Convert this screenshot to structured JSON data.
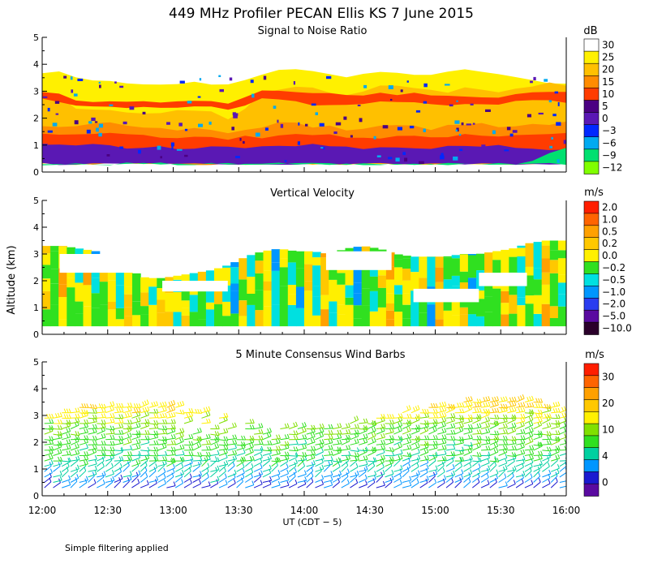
{
  "title": "449 MHz Profiler PECAN Ellis KS  7 June 2015",
  "ylabel": "Altitude (km)",
  "footnote": "Simple filtering applied",
  "colors": {
    "background": "#ffffff",
    "axis": "#000000",
    "text": "#000000"
  },
  "chart_data": [
    {
      "type": "heatmap",
      "title": "Signal to Noise Ratio",
      "xlabel": "",
      "ylabel": "Altitude (km)",
      "xlim": [
        0,
        240
      ],
      "ylim": [
        0,
        5
      ],
      "y_ticks": [
        "0",
        "1",
        "2",
        "3",
        "4",
        "5"
      ],
      "colorbar": {
        "unit": "dB",
        "labels": [
          "30",
          "25",
          "20",
          "15",
          "10",
          "5",
          "0",
          "−3",
          "−6",
          "−9",
          "−12"
        ],
        "colors": [
          "#ffffff",
          "#fff000",
          "#ffc000",
          "#ff8c00",
          "#ff3c00",
          "#4b0082",
          "#5a18b4",
          "#0028ff",
          "#00aaf0",
          "#00e070",
          "#80ff00"
        ]
      },
      "layers": [
        {
          "level": 0,
          "top": [
            3.9,
            4.0,
            3.8,
            3.6,
            3.55,
            3.5,
            3.45,
            3.5,
            3.6,
            3.6,
            3.5,
            3.4,
            3.55,
            3.8,
            4.0,
            4.0,
            3.9,
            3.8,
            3.7,
            3.8,
            3.9,
            3.95,
            3.9,
            3.8,
            3.9,
            3.95,
            3.9,
            3.8,
            3.7,
            3.6,
            3.5,
            3.45
          ],
          "bottom": [
            0.3,
            0.3,
            0.3,
            0.3,
            0.3,
            0.3,
            0.3,
            0.3,
            0.3,
            0.3,
            0.3,
            0.3,
            0.3,
            0.3,
            0.3,
            0.3,
            0.3,
            0.3,
            0.3,
            0.3,
            0.3,
            0.3,
            0.3,
            0.3,
            0.3,
            0.3,
            0.3,
            0.3,
            0.3,
            0.3,
            0.3,
            0.3
          ]
        },
        {
          "level": 1,
          "top": [
            3.7,
            3.7,
            3.5,
            3.4,
            3.4,
            3.35,
            3.3,
            3.3,
            3.3,
            3.35,
            3.3,
            3.2,
            3.4,
            3.6,
            3.8,
            3.85,
            3.75,
            3.6,
            3.5,
            3.6,
            3.7,
            3.7,
            3.65,
            3.6,
            3.7,
            3.8,
            3.7,
            3.6,
            3.5,
            3.4,
            3.35,
            3.3
          ],
          "bottom": [
            0.3,
            0.3,
            0.3,
            0.3,
            0.3,
            0.3,
            0.3,
            0.3,
            0.3,
            0.3,
            0.3,
            0.3,
            0.3,
            0.3,
            0.3,
            0.3,
            0.3,
            0.3,
            0.3,
            0.3,
            0.3,
            0.3,
            0.3,
            0.3,
            0.3,
            0.3,
            0.3,
            0.3,
            0.3,
            0.3,
            0.3,
            0.3
          ]
        },
        {
          "level": 2,
          "top": [
            2.9,
            2.8,
            2.4,
            2.3,
            2.3,
            2.2,
            2.2,
            2.2,
            2.3,
            2.3,
            2.2,
            2.0,
            2.4,
            2.9,
            3.1,
            3.2,
            3.1,
            3.0,
            2.9,
            3.0,
            3.2,
            3.2,
            3.1,
            3.0,
            3.0,
            3.1,
            3.1,
            3.0,
            3.1,
            3.2,
            3.3,
            3.2
          ],
          "bottom": [
            0.3,
            0.3,
            0.3,
            0.3,
            0.3,
            0.3,
            0.3,
            0.3,
            0.3,
            0.3,
            0.3,
            0.3,
            0.3,
            0.3,
            0.3,
            0.3,
            0.3,
            0.3,
            0.3,
            0.3,
            0.3,
            0.3,
            0.3,
            0.3,
            0.3,
            0.3,
            0.3,
            0.3,
            0.3,
            0.3,
            0.3,
            0.3
          ]
        },
        {
          "level": 3,
          "top": [
            1.7,
            1.7,
            1.7,
            1.8,
            1.8,
            1.7,
            1.7,
            1.6,
            1.6,
            1.6,
            1.6,
            1.5,
            1.6,
            1.7,
            1.8,
            1.8,
            1.7,
            1.7,
            1.6,
            1.6,
            1.7,
            1.7,
            1.7,
            1.6,
            1.7,
            1.8,
            1.8,
            1.7,
            1.7,
            1.8,
            1.8,
            1.9
          ],
          "bottom": [
            0.3,
            0.3,
            0.3,
            0.3,
            0.3,
            0.3,
            0.3,
            0.3,
            0.3,
            0.3,
            0.3,
            0.3,
            0.3,
            0.3,
            0.3,
            0.3,
            0.3,
            0.3,
            0.3,
            0.3,
            0.3,
            0.3,
            0.3,
            0.3,
            0.3,
            0.3,
            0.3,
            0.3,
            0.3,
            0.3,
            0.3,
            0.3
          ]
        },
        {
          "level": 4,
          "top": [
            1.4,
            1.4,
            1.4,
            1.4,
            1.4,
            1.4,
            1.35,
            1.3,
            1.3,
            1.3,
            1.3,
            1.25,
            1.3,
            1.3,
            1.4,
            1.4,
            1.4,
            1.35,
            1.3,
            1.3,
            1.3,
            1.35,
            1.35,
            1.3,
            1.35,
            1.4,
            1.4,
            1.35,
            1.35,
            1.4,
            1.4,
            1.4
          ],
          "bottom": [
            0.6,
            0.6,
            0.6,
            0.6,
            0.6,
            0.6,
            0.6,
            0.6,
            0.6,
            0.6,
            0.6,
            0.6,
            0.6,
            0.6,
            0.6,
            0.6,
            0.6,
            0.6,
            0.6,
            0.6,
            0.6,
            0.6,
            0.6,
            0.6,
            0.6,
            0.6,
            0.6,
            0.6,
            0.6,
            0.6,
            0.6,
            0.6
          ]
        },
        {
          "level": 4,
          "top": [
            3.0,
            2.9,
            2.7,
            2.6,
            2.6,
            2.6,
            2.6,
            2.6,
            2.6,
            2.6,
            2.6,
            2.5,
            2.8,
            3.0,
            3.0,
            3.0,
            2.9,
            2.9,
            2.8,
            2.8,
            2.9,
            2.9,
            2.9,
            2.8,
            2.8,
            2.8,
            2.8,
            2.8,
            2.9,
            3.0,
            3.0,
            3.0
          ],
          "bottom": [
            2.7,
            2.6,
            2.5,
            2.4,
            2.4,
            2.4,
            2.4,
            2.4,
            2.4,
            2.4,
            2.4,
            2.3,
            2.5,
            2.7,
            2.7,
            2.6,
            2.5,
            2.5,
            2.5,
            2.5,
            2.6,
            2.6,
            2.6,
            2.5,
            2.5,
            2.5,
            2.5,
            2.5,
            2.6,
            2.7,
            2.7,
            2.6
          ]
        },
        {
          "level": 6,
          "top": [
            1.0,
            1.0,
            1.0,
            1.0,
            1.0,
            0.9,
            0.9,
            0.9,
            0.9,
            0.9,
            0.9,
            0.9,
            0.9,
            1.0,
            1.0,
            1.0,
            1.0,
            1.0,
            1.0,
            0.9,
            0.9,
            0.9,
            0.9,
            0.9,
            1.0,
            1.0,
            1.0,
            0.95,
            0.9,
            0.9,
            0.8,
            0.8
          ],
          "bottom": [
            0.3,
            0.3,
            0.3,
            0.3,
            0.3,
            0.3,
            0.3,
            0.3,
            0.3,
            0.3,
            0.3,
            0.3,
            0.3,
            0.3,
            0.3,
            0.3,
            0.3,
            0.3,
            0.3,
            0.3,
            0.3,
            0.3,
            0.3,
            0.3,
            0.3,
            0.3,
            0.3,
            0.3,
            0.3,
            0.3,
            0.3,
            0.3
          ]
        },
        {
          "level": 9,
          "top": [
            0.3,
            0.3,
            0.3,
            0.3,
            0.3,
            0.3,
            0.3,
            0.3,
            0.3,
            0.3,
            0.3,
            0.3,
            0.3,
            0.3,
            0.3,
            0.3,
            0.3,
            0.3,
            0.3,
            0.3,
            0.3,
            0.3,
            0.3,
            0.3,
            0.3,
            0.3,
            0.3,
            0.3,
            0.3,
            0.4,
            0.75,
            0.85
          ],
          "bottom": [
            0.3,
            0.3,
            0.3,
            0.3,
            0.3,
            0.3,
            0.3,
            0.3,
            0.3,
            0.3,
            0.3,
            0.3,
            0.3,
            0.3,
            0.3,
            0.3,
            0.3,
            0.3,
            0.3,
            0.3,
            0.3,
            0.3,
            0.3,
            0.3,
            0.3,
            0.3,
            0.3,
            0.3,
            0.3,
            0.3,
            0.3,
            0.3
          ]
        }
      ]
    },
    {
      "type": "heatmap",
      "title": "Vertical Velocity",
      "xlabel": "",
      "ylabel": "Altitude (km)",
      "xlim": [
        0,
        240
      ],
      "ylim": [
        0,
        5
      ],
      "y_ticks": [
        "0",
        "1",
        "2",
        "3",
        "4",
        "5"
      ],
      "colorbar": {
        "unit": "m/s",
        "labels": [
          "2.0",
          "1.0",
          "0.5",
          "0.2",
          "0.0",
          "−0.2",
          "−0.5",
          "−1.0",
          "−2.0",
          "−5.0",
          "−10.0"
        ],
        "colors": [
          "#ff1e00",
          "#ff6400",
          "#ffa000",
          "#ffc800",
          "#fff000",
          "#30e020",
          "#00e0e0",
          "#0096ff",
          "#2a3cf0",
          "#5a0aa0",
          "#2b002b"
        ]
      },
      "column_levels": [
        4,
        5,
        3,
        4,
        5,
        3,
        6,
        4,
        3,
        5,
        3,
        4,
        4,
        5,
        4,
        3,
        5,
        4,
        5,
        4,
        5,
        4,
        5,
        6,
        4,
        5,
        4,
        3,
        6,
        4,
        5,
        6,
        4,
        5,
        3,
        5,
        4,
        5,
        6,
        4,
        5,
        4,
        3,
        5,
        4,
        5,
        4,
        6,
        3,
        5,
        5,
        4,
        6,
        5,
        4,
        5,
        3,
        4,
        5,
        4,
        5,
        3,
        4,
        5
      ],
      "top_km": [
        3.3,
        3.3,
        3.2,
        3.1,
        2.8,
        2.4,
        2.1,
        2.1,
        2.2,
        2.3,
        2.4,
        2.6,
        2.9,
        3.1,
        3.2,
        3.1,
        3.1,
        3.0,
        3.2,
        3.3,
        3.2,
        3.0,
        2.9,
        2.9,
        2.9,
        3.0,
        3.0,
        3.1,
        3.2,
        3.4,
        3.5,
        3.5
      ]
    },
    {
      "type": "barbs",
      "title": "5 Minute Consensus Wind Barbs",
      "xlabel": "UT  (CDT − 5)",
      "ylabel": "Altitude (km)",
      "xlim": [
        0,
        240
      ],
      "ylim": [
        0,
        5
      ],
      "x_ticks": [
        "12:00",
        "12:30",
        "13:00",
        "13:30",
        "14:00",
        "14:30",
        "15:00",
        "15:30",
        "16:00"
      ],
      "y_ticks": [
        "0",
        "1",
        "2",
        "3",
        "4",
        "5"
      ],
      "colorbar": {
        "unit": "m/s",
        "labels": [
          "30",
          "20",
          "10",
          "4",
          "0"
        ],
        "colors": [
          "#ff1e00",
          "#ff6400",
          "#ffa000",
          "#ffc800",
          "#fff000",
          "#80e000",
          "#30e020",
          "#00d0a0",
          "#0096ff",
          "#1a1ad0",
          "#5a0aa0"
        ]
      },
      "speed_profile": {
        "alt_km": [
          0.3,
          0.8,
          1.3,
          1.8,
          2.3,
          2.8,
          3.3
        ],
        "speed_ms": [
          4,
          8,
          10,
          12,
          13,
          16,
          19
        ]
      }
    }
  ]
}
